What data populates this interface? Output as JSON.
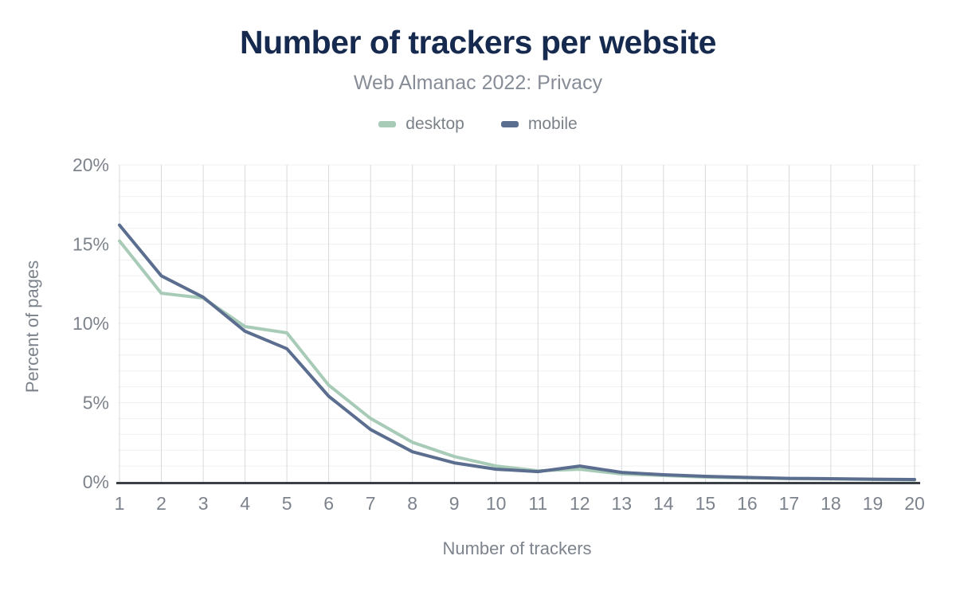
{
  "chart_data": {
    "type": "line",
    "title": "Number of trackers per website",
    "subtitle": "Web Almanac 2022: Privacy",
    "xlabel": "Number of trackers",
    "ylabel": "Percent of pages",
    "categories": [
      1,
      2,
      3,
      4,
      5,
      6,
      7,
      8,
      9,
      10,
      11,
      12,
      13,
      14,
      15,
      16,
      17,
      18,
      19,
      20
    ],
    "series": [
      {
        "name": "desktop",
        "color": "#a8cbb8",
        "values": [
          15.2,
          11.9,
          11.6,
          9.8,
          9.4,
          6.1,
          4.0,
          2.5,
          1.6,
          1.0,
          0.7,
          0.8,
          0.5,
          0.4,
          0.3,
          0.25,
          0.2,
          0.18,
          0.15,
          0.12
        ]
      },
      {
        "name": "mobile",
        "color": "#5b6e8f",
        "values": [
          16.2,
          13.0,
          11.65,
          9.5,
          8.4,
          5.4,
          3.3,
          1.9,
          1.2,
          0.8,
          0.65,
          1.0,
          0.6,
          0.45,
          0.35,
          0.28,
          0.22,
          0.2,
          0.17,
          0.15
        ]
      }
    ],
    "ylim": [
      0,
      20
    ],
    "y_ticks": [
      {
        "value": 0,
        "label": "0%"
      },
      {
        "value": 5,
        "label": "5%"
      },
      {
        "value": 10,
        "label": "10%"
      },
      {
        "value": 15,
        "label": "15%"
      },
      {
        "value": 20,
        "label": "20%"
      }
    ],
    "grid": {
      "horizontal_step": 1,
      "vertical": "every-category",
      "legend_position": "top"
    }
  },
  "colors": {
    "title_text": "#16294e",
    "subtitle_text": "#878d96",
    "axis_text": "#7d838c",
    "grid_vertical": "#d9d9d9",
    "grid_horizontal": "#f1f1f1",
    "axis_line": "#3b4046"
  }
}
